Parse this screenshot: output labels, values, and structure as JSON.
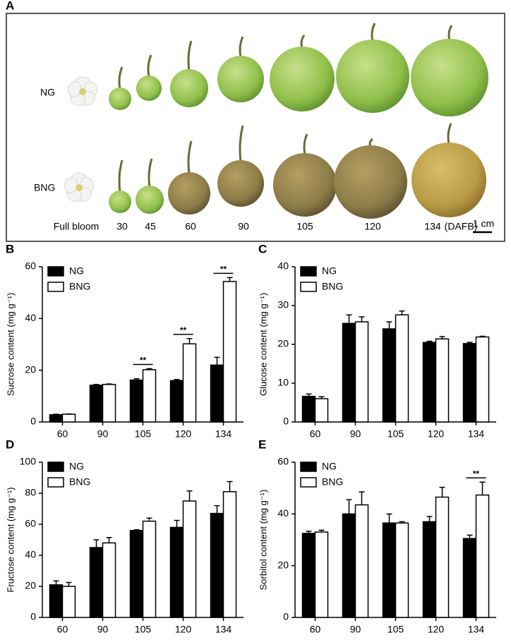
{
  "photo_panel": {
    "panel": "A",
    "rows": [
      "NG",
      "BNG"
    ],
    "stages": [
      "Full bloom",
      "30",
      "45",
      "60",
      "90",
      "105",
      "120",
      "134"
    ],
    "stage_unit": "(DAFB)",
    "scale_bar": "1 cm"
  },
  "chart_data": [
    {
      "type": "bar",
      "panel": "B",
      "ylabel": "Sucrose content (mg g⁻¹)",
      "categories": [
        "60",
        "90",
        "105",
        "120",
        "134"
      ],
      "series": [
        {
          "name": "NG",
          "color": "#000000",
          "values": [
            2.8,
            14.2,
            16.2,
            16.0,
            22.0
          ],
          "errors": [
            0.2,
            0.3,
            0.5,
            0.4,
            3.0
          ]
        },
        {
          "name": "BNG",
          "color": "#ffffff",
          "values": [
            3.0,
            14.5,
            20.2,
            30.2,
            54.3
          ],
          "errors": [
            0.1,
            0.2,
            0.4,
            2.0,
            1.5
          ]
        }
      ],
      "significance": [
        null,
        null,
        "**",
        "**",
        "**"
      ],
      "ylim": [
        0,
        60
      ],
      "yticks": [
        0,
        20,
        40,
        60
      ],
      "legend": "upper left"
    },
    {
      "type": "bar",
      "panel": "C",
      "ylabel": "Glucose content (mg g⁻¹)",
      "categories": [
        "60",
        "90",
        "105",
        "120",
        "134"
      ],
      "series": [
        {
          "name": "NG",
          "color": "#000000",
          "values": [
            6.6,
            25.4,
            24.0,
            20.5,
            20.2
          ],
          "errors": [
            0.6,
            2.2,
            1.8,
            0.3,
            0.3
          ]
        },
        {
          "name": "BNG",
          "color": "#ffffff",
          "values": [
            6.0,
            25.8,
            27.6,
            21.4,
            21.9
          ],
          "errors": [
            0.5,
            1.3,
            1.0,
            0.6,
            0.2
          ]
        }
      ],
      "significance": [
        null,
        null,
        null,
        null,
        null
      ],
      "ylim": [
        0,
        40
      ],
      "yticks": [
        0,
        10,
        20,
        30,
        40
      ],
      "legend": "upper left"
    },
    {
      "type": "bar",
      "panel": "D",
      "ylabel": "Fructose content (mg g⁻¹)",
      "categories": [
        "60",
        "90",
        "105",
        "120",
        "134"
      ],
      "series": [
        {
          "name": "NG",
          "color": "#000000",
          "values": [
            21,
            45,
            56,
            58,
            67
          ],
          "errors": [
            2.5,
            5,
            0.5,
            4.5,
            5
          ]
        },
        {
          "name": "BNG",
          "color": "#ffffff",
          "values": [
            20,
            48,
            62,
            75,
            81
          ],
          "errors": [
            2.5,
            3.5,
            2,
            6.5,
            6.5
          ]
        }
      ],
      "significance": [
        null,
        null,
        null,
        null,
        null
      ],
      "ylim": [
        0,
        100
      ],
      "yticks": [
        0,
        20,
        40,
        60,
        80,
        100
      ],
      "legend": "upper left"
    },
    {
      "type": "bar",
      "panel": "E",
      "ylabel": "Sorbitol content (mg g⁻¹)",
      "categories": [
        "60",
        "90",
        "105",
        "120",
        "134"
      ],
      "series": [
        {
          "name": "NG",
          "color": "#000000",
          "values": [
            32.5,
            40,
            36.5,
            37,
            30.5
          ],
          "errors": [
            0.8,
            5.5,
            3.5,
            2,
            1.3
          ]
        },
        {
          "name": "BNG",
          "color": "#ffffff",
          "values": [
            33,
            43.5,
            36.5,
            46.5,
            47.3
          ],
          "errors": [
            0.7,
            5,
            0.5,
            3.8,
            5
          ]
        }
      ],
      "significance": [
        null,
        null,
        null,
        null,
        "**"
      ],
      "ylim": [
        0,
        60
      ],
      "yticks": [
        0,
        20,
        40,
        60
      ],
      "legend": "upper left"
    }
  ]
}
